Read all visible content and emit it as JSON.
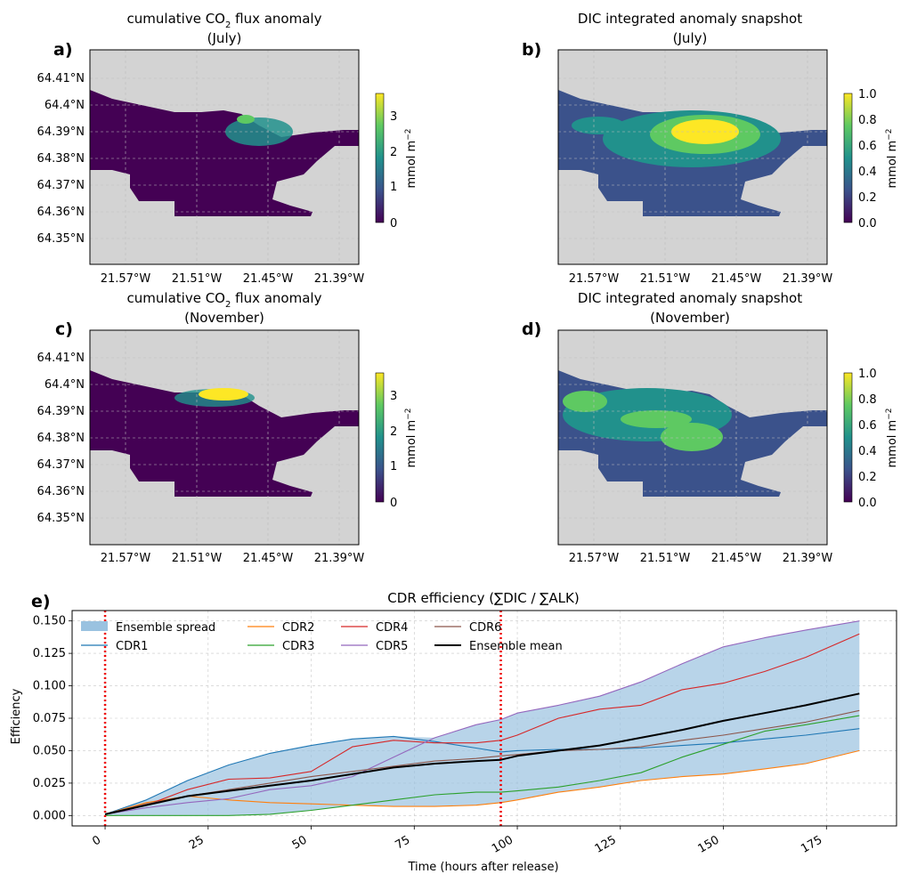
{
  "figure": {
    "panels": [
      {
        "letter": "a)",
        "title_main": "cumulative CO",
        "title_sub": "2",
        "title_tail": " flux anomaly",
        "title_line2": "(July)"
      },
      {
        "letter": "b)",
        "title_main": "DIC integrated anomaly snapshot",
        "title_line2": "(July)"
      },
      {
        "letter": "c)",
        "title_main": "cumulative CO",
        "title_sub": "2",
        "title_tail": " flux anomaly",
        "title_line2": "(November)"
      },
      {
        "letter": "d)",
        "title_main": "DIC integrated anomaly snapshot",
        "title_line2": "(November)"
      }
    ],
    "map_lat_ticks": [
      "64.41°N",
      "64.4°N",
      "64.39°N",
      "64.38°N",
      "64.37°N",
      "64.36°N",
      "64.35°N"
    ],
    "map_lon_ticks": [
      "21.57°W",
      "21.51°W",
      "21.45°W",
      "21.39°W"
    ],
    "colorbar_label": "mmol m",
    "colorbar_label_sup": "−2",
    "colorbar_flux_ticks": [
      "0",
      "1",
      "2",
      "3"
    ],
    "colorbar_dic_ticks": [
      "0.0",
      "0.2",
      "0.4",
      "0.6",
      "0.8",
      "1.0"
    ],
    "colors": {
      "land": "#d3d3d3",
      "cmap": [
        "#440154",
        "#3b528b",
        "#21918c",
        "#5ec962",
        "#fde725"
      ],
      "vline": "#ee0000"
    }
  },
  "chart_data": {
    "type": "line",
    "letter": "e)",
    "title": "CDR efficiency (∑DIC / ∑ALK)",
    "xlabel": "Time (hours after release)",
    "ylabel": "Efficiency",
    "xlim": [
      -8,
      192
    ],
    "ylim": [
      -0.008,
      0.158
    ],
    "xticks": [
      "0",
      "25",
      "50",
      "75",
      "100",
      "125",
      "150",
      "175"
    ],
    "yticks": [
      "0.000",
      "0.025",
      "0.050",
      "0.075",
      "0.100",
      "0.125",
      "0.150"
    ],
    "grid": true,
    "legend_position": "top-left",
    "vlines": [
      0,
      96
    ],
    "x": [
      0,
      10,
      20,
      30,
      40,
      50,
      60,
      70,
      80,
      90,
      96,
      100,
      110,
      120,
      130,
      140,
      150,
      160,
      170,
      183
    ],
    "spread_label": "Ensemble spread",
    "series": [
      {
        "name": "CDR1",
        "color": "#1f77b4",
        "values": [
          0.001,
          0.012,
          0.027,
          0.039,
          0.048,
          0.054,
          0.059,
          0.061,
          0.057,
          0.052,
          0.049,
          0.05,
          0.051,
          0.051,
          0.052,
          0.054,
          0.056,
          0.059,
          0.062,
          0.067
        ]
      },
      {
        "name": "CDR2",
        "color": "#ff7f0e",
        "values": [
          0.001,
          0.01,
          0.015,
          0.012,
          0.01,
          0.009,
          0.008,
          0.007,
          0.007,
          0.008,
          0.01,
          0.012,
          0.018,
          0.022,
          0.027,
          0.03,
          0.032,
          0.036,
          0.04,
          0.05
        ]
      },
      {
        "name": "CDR3",
        "color": "#2ca02c",
        "values": [
          0.0,
          0.0,
          0.0,
          0.0,
          0.001,
          0.004,
          0.008,
          0.012,
          0.016,
          0.018,
          0.018,
          0.019,
          0.022,
          0.027,
          0.033,
          0.045,
          0.055,
          0.065,
          0.07,
          0.077
        ]
      },
      {
        "name": "CDR4",
        "color": "#d62728",
        "values": [
          0.001,
          0.008,
          0.02,
          0.028,
          0.029,
          0.034,
          0.053,
          0.058,
          0.056,
          0.056,
          0.058,
          0.062,
          0.075,
          0.082,
          0.085,
          0.097,
          0.102,
          0.111,
          0.122,
          0.14
        ]
      },
      {
        "name": "CDR5",
        "color": "#9467bd",
        "values": [
          0.001,
          0.006,
          0.01,
          0.013,
          0.02,
          0.023,
          0.03,
          0.045,
          0.06,
          0.07,
          0.074,
          0.079,
          0.085,
          0.092,
          0.103,
          0.117,
          0.13,
          0.137,
          0.143,
          0.15
        ]
      },
      {
        "name": "CDR6",
        "color": "#8c564b",
        "values": [
          0.001,
          0.009,
          0.015,
          0.02,
          0.025,
          0.03,
          0.034,
          0.038,
          0.042,
          0.044,
          0.046,
          0.047,
          0.05,
          0.051,
          0.053,
          0.058,
          0.062,
          0.067,
          0.072,
          0.081
        ]
      },
      {
        "name": "Ensemble mean",
        "color": "#000000",
        "width": 2,
        "values": [
          0.001,
          0.008,
          0.015,
          0.019,
          0.023,
          0.027,
          0.032,
          0.037,
          0.04,
          0.042,
          0.043,
          0.046,
          0.05,
          0.054,
          0.06,
          0.066,
          0.073,
          0.079,
          0.085,
          0.094
        ]
      }
    ]
  }
}
